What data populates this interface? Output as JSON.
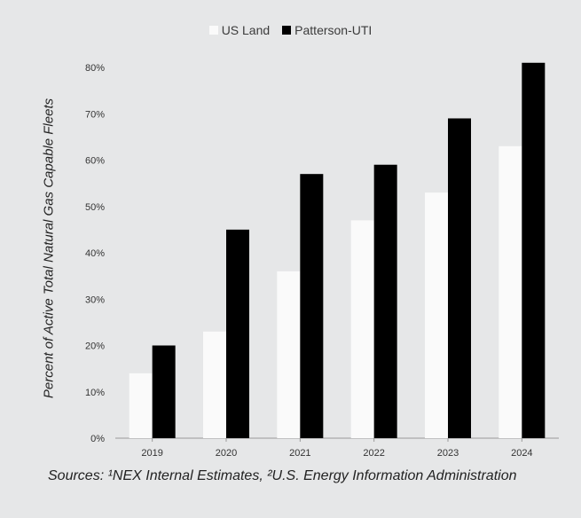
{
  "chart_data": {
    "type": "bar",
    "categories": [
      "2019",
      "2020",
      "2021",
      "2022",
      "2023",
      "2024"
    ],
    "series": [
      {
        "name": "US Land",
        "color": "#fafafa",
        "values": [
          14,
          23,
          36,
          47,
          53,
          63
        ]
      },
      {
        "name": "Patterson-UTI",
        "color": "#000000",
        "values": [
          20,
          45,
          57,
          59,
          69,
          81
        ]
      }
    ],
    "ylabel": "Percent of Active Total Natural Gas Capable Fleets",
    "xlabel": "",
    "ylim": [
      0,
      80
    ],
    "yticks": [
      "0%",
      "10%",
      "20%",
      "30%",
      "40%",
      "50%",
      "60%",
      "70%",
      "80%"
    ],
    "legend_position": "top-center",
    "grid": false
  },
  "footer": {
    "source": "Sources: ¹NEX Internal Estimates, ²U.S. Energy Information Administration"
  }
}
